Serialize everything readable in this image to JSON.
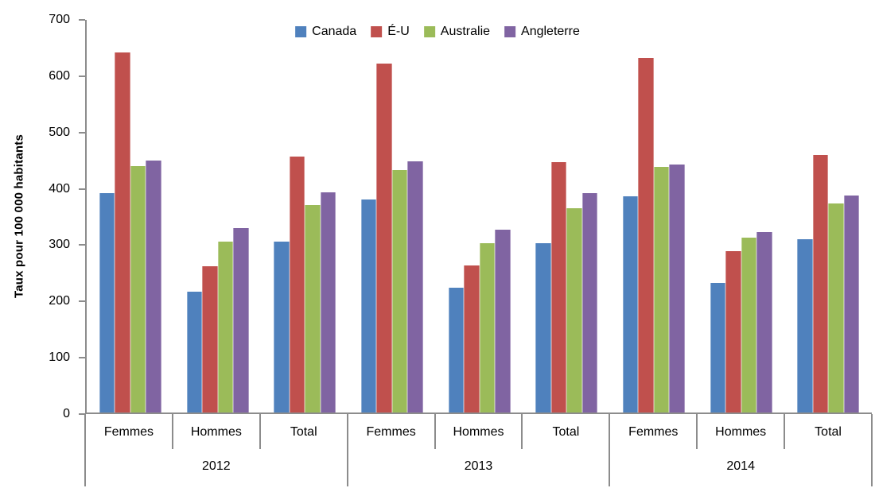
{
  "chart_data": {
    "type": "bar",
    "title": "",
    "ylabel": "Taux pour 100 000 habitants",
    "xlabel": "",
    "ylim": [
      0,
      700
    ],
    "ytick_step": 100,
    "grid": false,
    "legend_position": "top-center",
    "axis_color": "#8C8C8C",
    "year_groups": [
      "2012",
      "2013",
      "2014"
    ],
    "subcategories": [
      "Femmes",
      "Hommes",
      "Total"
    ],
    "series": [
      {
        "name": "Canada",
        "color": "#4F81BD",
        "values": [
          390,
          215,
          304,
          378,
          221,
          300,
          384,
          230,
          308
        ]
      },
      {
        "name": "É-U",
        "color": "#C0504D",
        "values": [
          640,
          260,
          454,
          620,
          261,
          444,
          630,
          287,
          457
        ]
      },
      {
        "name": "Australie",
        "color": "#9BBB59",
        "values": [
          437,
          304,
          369,
          430,
          301,
          363,
          436,
          310,
          371
        ]
      },
      {
        "name": "Angleterre",
        "color": "#8064A2",
        "values": [
          447,
          327,
          391,
          446,
          325,
          390,
          441,
          320,
          385
        ]
      }
    ]
  }
}
